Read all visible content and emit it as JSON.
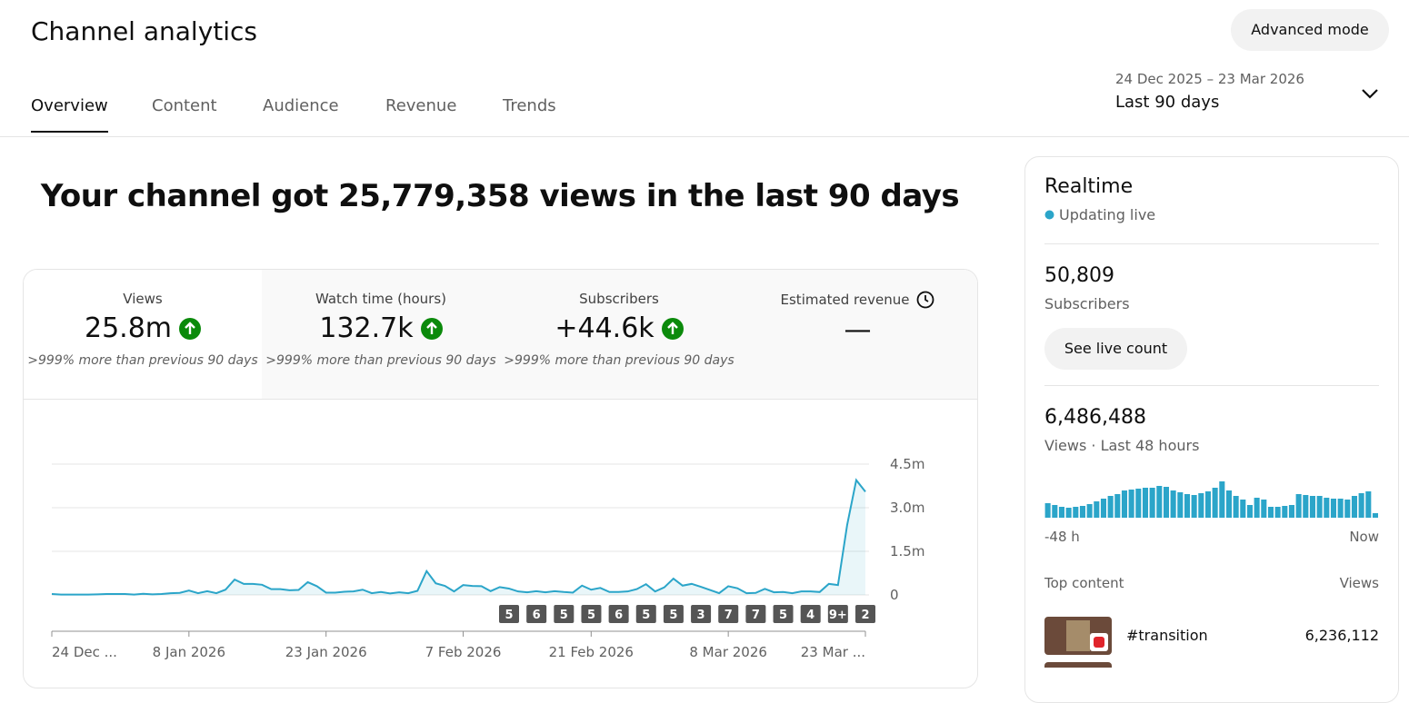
{
  "header": {
    "title": "Channel analytics",
    "advanced_button": "Advanced mode"
  },
  "tabs": [
    "Overview",
    "Content",
    "Audience",
    "Revenue",
    "Trends"
  ],
  "active_tab": 0,
  "date_range": {
    "dates": "24 Dec 2025 – 23 Mar 2026",
    "label": "Last 90 days"
  },
  "headline": "Your channel got 25,779,358 views in the last 90 days",
  "metrics": [
    {
      "label": "Views",
      "value": "25.8m",
      "change": ">999% more than previous 90 days"
    },
    {
      "label": "Watch time (hours)",
      "value": "132.7k",
      "change": ">999% more than previous 90 days"
    },
    {
      "label": "Subscribers",
      "value": "+44.6k",
      "change": ">999% more than previous 90 days"
    },
    {
      "label": "Estimated revenue",
      "value": "—"
    }
  ],
  "realtime": {
    "title": "Realtime",
    "status": "Updating live",
    "subscribers": "50,809",
    "subscribers_label": "Subscribers",
    "live_button": "See live count",
    "views": "6,486,488",
    "views_label": "Views · Last 48 hours",
    "top_content_label": "Top content",
    "top_content_views_label": "Views",
    "top_content": [
      {
        "title": "#transition",
        "views": "6,236,112"
      }
    ]
  },
  "chart_data": [
    {
      "type": "line",
      "color": "#2ba5c9",
      "grid": true,
      "categories": [
        "24 Dec ...",
        null,
        null,
        null,
        null,
        null,
        null,
        null,
        null,
        null,
        null,
        null,
        null,
        null,
        null,
        "8 Jan 2026",
        null,
        null,
        null,
        null,
        null,
        null,
        null,
        null,
        null,
        null,
        null,
        null,
        null,
        null,
        "23 Jan 2026",
        null,
        null,
        null,
        null,
        null,
        null,
        null,
        null,
        null,
        null,
        null,
        null,
        null,
        null,
        "7 Feb 2026",
        null,
        null,
        null,
        null,
        null,
        null,
        null,
        null,
        null,
        null,
        null,
        null,
        null,
        "21 Feb 2026",
        null,
        null,
        null,
        null,
        null,
        null,
        null,
        null,
        null,
        null,
        null,
        null,
        null,
        null,
        "8 Mar 2026",
        null,
        null,
        null,
        null,
        null,
        null,
        null,
        null,
        null,
        null,
        null,
        null,
        null,
        null,
        "23 Mar ..."
      ],
      "values": [
        30000,
        10000,
        10000,
        10000,
        10000,
        20000,
        30000,
        30000,
        30000,
        10000,
        40000,
        20000,
        30000,
        60000,
        70000,
        150000,
        60000,
        130000,
        60000,
        180000,
        530000,
        380000,
        380000,
        350000,
        200000,
        200000,
        160000,
        170000,
        440000,
        300000,
        80000,
        80000,
        110000,
        120000,
        180000,
        60000,
        100000,
        50000,
        90000,
        60000,
        140000,
        820000,
        400000,
        310000,
        120000,
        340000,
        310000,
        300000,
        130000,
        270000,
        220000,
        120000,
        90000,
        130000,
        90000,
        130000,
        100000,
        80000,
        320000,
        180000,
        240000,
        100000,
        100000,
        120000,
        200000,
        370000,
        120000,
        260000,
        560000,
        320000,
        380000,
        280000,
        170000,
        60000,
        300000,
        230000,
        60000,
        70000,
        210000,
        90000,
        100000,
        60000,
        120000,
        120000,
        100000,
        380000,
        340000,
        2400000,
        3950000,
        3550000
      ],
      "ylim": [
        0,
        4500000
      ],
      "yticks": [
        {
          "value": 0,
          "label": "0"
        },
        {
          "value": 1500000,
          "label": "1.5m"
        },
        {
          "value": 3000000,
          "label": "3.0m"
        },
        {
          "value": 4500000,
          "label": "4.5m"
        }
      ],
      "annotations": [
        "5",
        "6",
        "5",
        "5",
        "6",
        "5",
        "5",
        "3",
        "7",
        "7",
        "5",
        "4",
        "9+",
        "2"
      ]
    },
    {
      "type": "bar",
      "color": "#2ba5c9",
      "categories": [
        "-48 h",
        null,
        null,
        null,
        null,
        null,
        null,
        null,
        null,
        null,
        null,
        null,
        null,
        null,
        null,
        null,
        null,
        null,
        null,
        null,
        null,
        null,
        null,
        null,
        null,
        null,
        null,
        null,
        null,
        null,
        null,
        null,
        null,
        null,
        null,
        null,
        null,
        null,
        null,
        null,
        null,
        null,
        null,
        null,
        null,
        null,
        null,
        "Now"
      ],
      "values": [
        80000,
        70000,
        60000,
        55000,
        60000,
        65000,
        75000,
        90000,
        105000,
        120000,
        130000,
        150000,
        155000,
        160000,
        165000,
        165000,
        175000,
        170000,
        150000,
        140000,
        130000,
        125000,
        135000,
        145000,
        165000,
        200000,
        150000,
        120000,
        100000,
        70000,
        110000,
        100000,
        60000,
        60000,
        65000,
        70000,
        130000,
        125000,
        120000,
        120000,
        110000,
        105000,
        105000,
        100000,
        120000,
        135000,
        145000,
        25000
      ],
      "ylim": [
        0,
        200000
      ]
    }
  ]
}
